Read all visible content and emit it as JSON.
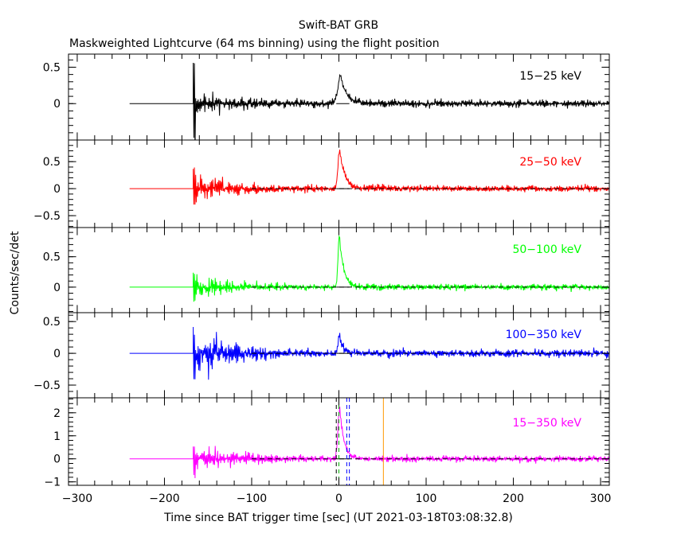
{
  "title": "Swift-BAT GRB",
  "subtitle": "Maskweighted Lightcurve (64 ms binning) using the flight position",
  "xlabel": "Time since BAT trigger time [sec] (UT 2021-03-18T03:08:32.8)",
  "ylabel": "Counts/sec/det",
  "chart_data": {
    "type": "line",
    "title": "Swift-BAT GRB",
    "subtitle": "Maskweighted Lightcurve (64 ms binning) using the flight position",
    "xlabel": "Time since BAT trigger time [sec] (UT 2021-03-18T03:08:32.8)",
    "ylabel": "Counts/sec/det",
    "xlim": [
      -310,
      310
    ],
    "x_ticks": [
      -300,
      -200,
      -100,
      0,
      100,
      200,
      300
    ],
    "x_tick_labels": [
      "−300",
      "−200",
      "−100",
      "0",
      "100",
      "200",
      "300"
    ],
    "binning_sec": 0.064,
    "data_start_sec": -240,
    "active_start_sec": -167,
    "vertical_markers": [
      {
        "x": -3,
        "color": "#000000",
        "style": "dashed"
      },
      {
        "x": 0,
        "color": "#00b000",
        "style": "dashed"
      },
      {
        "x": 9,
        "color": "#0000ff",
        "style": "dashed"
      },
      {
        "x": 12,
        "color": "#0000ff",
        "style": "dashed"
      },
      {
        "x": 51,
        "color": "#ff9900",
        "style": "solid"
      }
    ],
    "panels": [
      {
        "name": "15-25 keV",
        "label": "15−25 keV",
        "color": "#000000",
        "ylim": [
          -0.5,
          0.68
        ],
        "yticks": [
          0,
          0.5
        ],
        "ytick_labels": [
          "0",
          "0.5"
        ],
        "noise_start": 0.16,
        "noise_end": 0.04,
        "noise_decay_sec": 35,
        "onset_spike": 0.65,
        "peak": {
          "t": 2,
          "value": 0.38
        },
        "decay_sec": 7,
        "rise_sec": 3,
        "markers": [],
        "zero_dash": false
      },
      {
        "name": "25-50 keV",
        "label": "25−50 keV",
        "color": "#ff0000",
        "ylim": [
          -0.72,
          0.9
        ],
        "yticks": [
          -0.5,
          0,
          0.5
        ],
        "ytick_labels": [
          "−0.5",
          "0",
          "0.5"
        ],
        "noise_start": 0.25,
        "noise_end": 0.05,
        "noise_decay_sec": 35,
        "onset_spike": 0.45,
        "peak": {
          "t": 1,
          "value": 0.7
        },
        "decay_sec": 6,
        "rise_sec": 2,
        "markers": [],
        "zero_dash": true
      },
      {
        "name": "50-100 keV",
        "label": "50−100 keV",
        "color": "#00ff00",
        "ylim": [
          -0.42,
          0.98
        ],
        "yticks": [
          0,
          0.5
        ],
        "ytick_labels": [
          "0",
          "0.5"
        ],
        "noise_start": 0.2,
        "noise_end": 0.04,
        "noise_decay_sec": 30,
        "onset_spike": 0.3,
        "peak": {
          "t": 0.5,
          "value": 0.85
        },
        "decay_sec": 5,
        "rise_sec": 1.5,
        "markers": [],
        "zero_dash": true
      },
      {
        "name": "100-350 keV",
        "label": "100−350 keV",
        "color": "#0000ff",
        "ylim": [
          -0.7,
          0.64
        ],
        "yticks": [
          -0.5,
          0,
          0.5
        ],
        "ytick_labels": [
          "−0.5",
          "0",
          "0.5"
        ],
        "noise_start": 0.3,
        "noise_end": 0.05,
        "noise_decay_sec": 40,
        "onset_spike": 0.45,
        "peak": {
          "t": 0.5,
          "value": 0.3
        },
        "decay_sec": 4,
        "rise_sec": 1.5,
        "markers": [],
        "zero_dash": true
      },
      {
        "name": "15-350 keV",
        "label": "15−350 keV",
        "color": "#ff00ff",
        "ylim": [
          -1.15,
          2.65
        ],
        "yticks": [
          -1,
          0,
          1,
          2
        ],
        "ytick_labels": [
          "−1",
          "0",
          "1",
          "2"
        ],
        "noise_start": 0.65,
        "noise_end": 0.1,
        "noise_decay_sec": 40,
        "onset_spike": 0.85,
        "peak": {
          "t": 1,
          "value": 2.2
        },
        "decay_sec": 5,
        "rise_sec": 2,
        "markers": [
          "all"
        ],
        "zero_dash": true
      }
    ]
  }
}
